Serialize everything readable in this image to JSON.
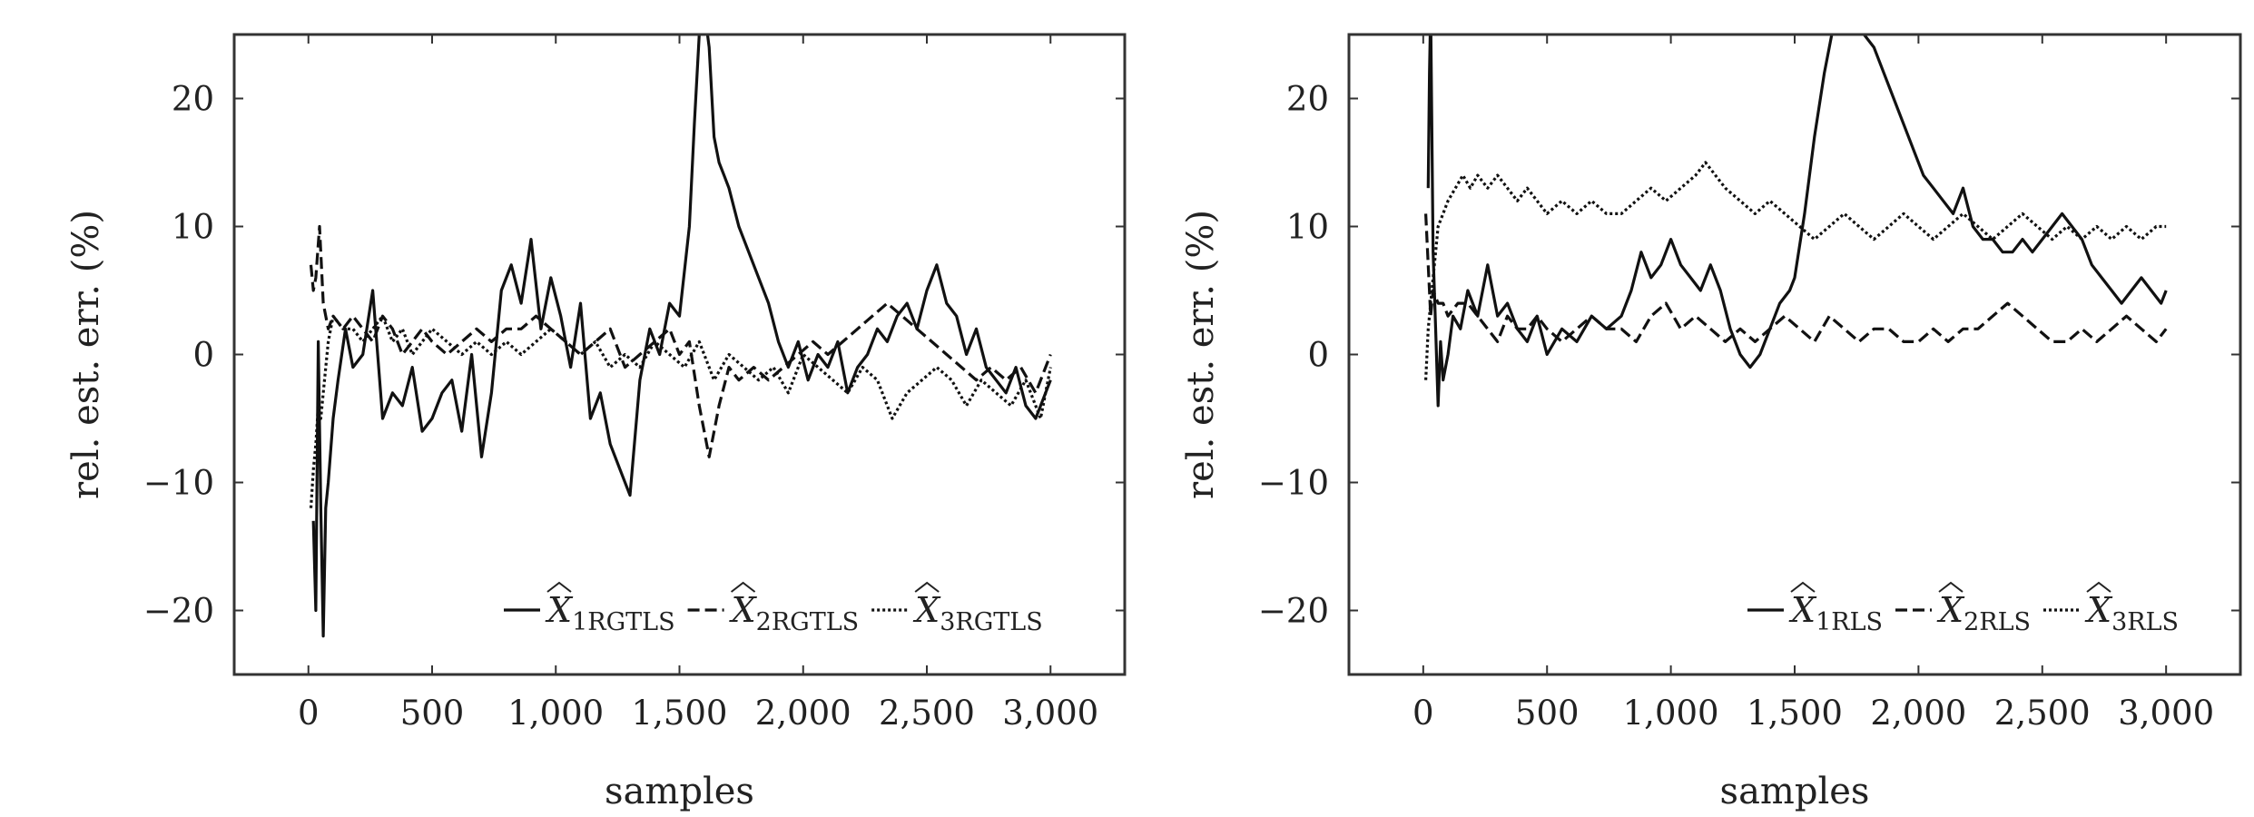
{
  "chart_data": [
    {
      "type": "line",
      "xlabel": "samples",
      "ylabel": "rel. est. err. (%)",
      "xlim": [
        -300,
        3300
      ],
      "ylim": [
        -25,
        25
      ],
      "x_ticks": [
        0,
        500,
        1000,
        1500,
        2000,
        2500,
        3000
      ],
      "x_tick_labels": [
        "0",
        "500",
        "1,000",
        "1,500",
        "2,000",
        "2,500",
        "3,000"
      ],
      "y_ticks": [
        -20,
        -10,
        0,
        10,
        20
      ],
      "y_tick_labels": [
        "−20",
        "−10",
        "0",
        "10",
        "20"
      ],
      "grid": false,
      "legend_position": "bottom-right",
      "series": [
        {
          "name": "X̂1RGTLS",
          "legend": {
            "symbol": "X",
            "subscript": "1RGTLS"
          },
          "style": "solid",
          "x": [
            20,
            30,
            40,
            50,
            60,
            70,
            80,
            100,
            120,
            150,
            180,
            220,
            260,
            300,
            340,
            380,
            420,
            460,
            500,
            540,
            580,
            620,
            660,
            700,
            740,
            780,
            820,
            860,
            900,
            940,
            980,
            1020,
            1060,
            1100,
            1140,
            1180,
            1220,
            1260,
            1300,
            1340,
            1380,
            1420,
            1460,
            1500,
            1540,
            1560,
            1580,
            1600,
            1620,
            1640,
            1660,
            1680,
            1700,
            1740,
            1780,
            1820,
            1860,
            1900,
            1940,
            1980,
            2020,
            2060,
            2100,
            2140,
            2180,
            2220,
            2260,
            2300,
            2340,
            2380,
            2420,
            2460,
            2500,
            2540,
            2580,
            2620,
            2660,
            2700,
            2740,
            2780,
            2820,
            2860,
            2900,
            2940,
            2980,
            3000
          ],
          "y": [
            -13,
            -20,
            1,
            -12,
            -22,
            -12,
            -10,
            -5,
            -2,
            2,
            -1,
            0,
            5,
            -5,
            -3,
            -4,
            -1,
            -6,
            -5,
            -3,
            -2,
            -6,
            0,
            -8,
            -3,
            5,
            7,
            4,
            9,
            2,
            6,
            3,
            -1,
            4,
            -5,
            -3,
            -7,
            -9,
            -11,
            -2,
            2,
            0,
            4,
            3,
            10,
            18,
            25,
            27,
            24,
            17,
            15,
            14,
            13,
            10,
            8,
            6,
            4,
            1,
            -1,
            1,
            -2,
            0,
            -1,
            1,
            -3,
            -1,
            0,
            2,
            1,
            3,
            4,
            2,
            5,
            7,
            4,
            3,
            0,
            2,
            -1,
            -2,
            -3,
            -1,
            -4,
            -5,
            -3,
            -2
          ]
        },
        {
          "name": "X̂2RGTLS",
          "legend": {
            "symbol": "X",
            "subscript": "2RGTLS"
          },
          "style": "dashed",
          "x": [
            10,
            20,
            30,
            45,
            60,
            80,
            100,
            140,
            180,
            220,
            260,
            300,
            340,
            380,
            420,
            460,
            500,
            560,
            620,
            680,
            740,
            800,
            860,
            920,
            980,
            1040,
            1100,
            1160,
            1220,
            1280,
            1340,
            1400,
            1460,
            1500,
            1540,
            1580,
            1620,
            1660,
            1700,
            1740,
            1800,
            1860,
            1920,
            1980,
            2040,
            2100,
            2160,
            2220,
            2280,
            2340,
            2400,
            2460,
            2520,
            2580,
            2640,
            2700,
            2760,
            2820,
            2880,
            2940,
            3000
          ],
          "y": [
            7,
            5,
            6,
            10,
            4,
            2,
            3,
            2,
            3,
            2,
            1,
            3,
            2,
            0,
            1,
            2,
            1,
            0,
            1,
            2,
            1,
            2,
            2,
            3,
            2,
            1,
            0,
            1,
            2,
            -1,
            0,
            1,
            2,
            0,
            1,
            -4,
            -8,
            -4,
            -1,
            -2,
            -1,
            -2,
            -1,
            0,
            1,
            0,
            1,
            2,
            3,
            4,
            3,
            2,
            1,
            0,
            -1,
            -2,
            -1,
            -2,
            -1,
            -3,
            0
          ]
        },
        {
          "name": "X̂3RGTLS",
          "legend": {
            "symbol": "X",
            "subscript": "3RGTLS"
          },
          "style": "dotted",
          "x": [
            10,
            20,
            30,
            40,
            50,
            60,
            80,
            100,
            140,
            180,
            220,
            260,
            300,
            340,
            380,
            420,
            460,
            500,
            560,
            620,
            680,
            740,
            800,
            860,
            920,
            980,
            1040,
            1100,
            1160,
            1220,
            1280,
            1340,
            1400,
            1460,
            1520,
            1580,
            1640,
            1700,
            1760,
            1820,
            1880,
            1940,
            2000,
            2060,
            2120,
            2180,
            2240,
            2300,
            2360,
            2420,
            2480,
            2540,
            2600,
            2660,
            2720,
            2780,
            2840,
            2900,
            2960,
            3000
          ],
          "y": [
            -12,
            -9,
            -7,
            -4,
            -5,
            -3,
            1,
            3,
            2,
            2,
            1,
            2,
            3,
            1,
            2,
            0,
            1,
            2,
            1,
            0,
            1,
            0,
            1,
            0,
            1,
            2,
            1,
            0,
            1,
            -1,
            0,
            -1,
            1,
            0,
            -1,
            1,
            -2,
            0,
            -1,
            -2,
            -1,
            -3,
            0,
            -1,
            -2,
            -3,
            -1,
            -2,
            -5,
            -3,
            -2,
            -1,
            -2,
            -4,
            -2,
            -3,
            -4,
            -2,
            -5,
            -1
          ]
        }
      ]
    },
    {
      "type": "line",
      "xlabel": "samples",
      "ylabel": "rel. est. err. (%)",
      "xlim": [
        -300,
        3300
      ],
      "ylim": [
        -25,
        25
      ],
      "x_ticks": [
        0,
        500,
        1000,
        1500,
        2000,
        2500,
        3000
      ],
      "x_tick_labels": [
        "0",
        "500",
        "1,000",
        "1,500",
        "2,000",
        "2,500",
        "3,000"
      ],
      "y_ticks": [
        -20,
        -10,
        0,
        10,
        20
      ],
      "y_tick_labels": [
        "−20",
        "−10",
        "0",
        "10",
        "20"
      ],
      "grid": false,
      "legend_position": "bottom-right",
      "series": [
        {
          "name": "X̂1RLS",
          "legend": {
            "symbol": "X",
            "subscript": "1RLS"
          },
          "style": "solid",
          "x": [
            20,
            25,
            30,
            40,
            50,
            60,
            70,
            80,
            100,
            120,
            150,
            180,
            220,
            260,
            300,
            340,
            380,
            420,
            460,
            500,
            560,
            620,
            680,
            740,
            800,
            840,
            880,
            920,
            960,
            1000,
            1040,
            1080,
            1120,
            1160,
            1200,
            1240,
            1280,
            1320,
            1360,
            1400,
            1440,
            1480,
            1500,
            1540,
            1580,
            1620,
            1660,
            1700,
            1740,
            1780,
            1820,
            1860,
            1900,
            1940,
            1980,
            2020,
            2060,
            2100,
            2140,
            2180,
            2220,
            2260,
            2300,
            2340,
            2380,
            2420,
            2460,
            2500,
            2540,
            2580,
            2620,
            2660,
            2700,
            2740,
            2780,
            2820,
            2860,
            2900,
            2940,
            2980,
            3000
          ],
          "y": [
            13,
            22,
            27,
            8,
            2,
            -4,
            1,
            -2,
            0,
            3,
            2,
            5,
            3,
            7,
            3,
            4,
            2,
            1,
            3,
            0,
            2,
            1,
            3,
            2,
            3,
            5,
            8,
            6,
            7,
            9,
            7,
            6,
            5,
            7,
            5,
            2,
            0,
            -1,
            0,
            2,
            4,
            5,
            6,
            11,
            17,
            22,
            26,
            28,
            27,
            25,
            24,
            22,
            20,
            18,
            16,
            14,
            13,
            12,
            11,
            13,
            10,
            9,
            9,
            8,
            8,
            9,
            8,
            9,
            10,
            11,
            10,
            9,
            7,
            6,
            5,
            4,
            5,
            6,
            5,
            4,
            5
          ]
        },
        {
          "name": "X̂2RLS",
          "legend": {
            "symbol": "X",
            "subscript": "2RLS"
          },
          "style": "dashed",
          "x": [
            10,
            20,
            30,
            40,
            60,
            80,
            100,
            140,
            180,
            220,
            260,
            300,
            340,
            380,
            420,
            460,
            500,
            560,
            620,
            680,
            740,
            800,
            860,
            920,
            980,
            1040,
            1100,
            1160,
            1220,
            1280,
            1340,
            1400,
            1460,
            1520,
            1580,
            1640,
            1700,
            1760,
            1820,
            1880,
            1940,
            2000,
            2060,
            2120,
            2180,
            2240,
            2300,
            2360,
            2420,
            2480,
            2540,
            2600,
            2660,
            2720,
            2780,
            2840,
            2900,
            2960,
            3000
          ],
          "y": [
            11,
            7,
            3,
            5,
            4,
            4,
            3,
            4,
            4,
            3,
            2,
            1,
            3,
            2,
            2,
            3,
            2,
            1,
            2,
            3,
            2,
            2,
            1,
            3,
            4,
            2,
            3,
            2,
            1,
            2,
            1,
            2,
            3,
            2,
            1,
            3,
            2,
            1,
            2,
            2,
            1,
            1,
            2,
            1,
            2,
            2,
            3,
            4,
            3,
            2,
            1,
            1,
            2,
            1,
            2,
            3,
            2,
            1,
            2
          ]
        },
        {
          "name": "X̂3RLS",
          "legend": {
            "symbol": "X",
            "subscript": "3RLS"
          },
          "style": "dotted",
          "x": [
            10,
            20,
            30,
            40,
            50,
            60,
            80,
            100,
            130,
            160,
            190,
            220,
            260,
            300,
            340,
            380,
            420,
            460,
            500,
            560,
            620,
            680,
            740,
            800,
            860,
            920,
            980,
            1040,
            1100,
            1140,
            1180,
            1220,
            1280,
            1340,
            1400,
            1460,
            1520,
            1580,
            1640,
            1700,
            1760,
            1820,
            1880,
            1940,
            2000,
            2060,
            2120,
            2180,
            2240,
            2300,
            2360,
            2420,
            2480,
            2540,
            2600,
            2660,
            2720,
            2780,
            2840,
            2900,
            2960,
            3000
          ],
          "y": [
            -2,
            2,
            4,
            6,
            8,
            10,
            11,
            12,
            13,
            14,
            13,
            14,
            13,
            14,
            13,
            12,
            13,
            12,
            11,
            12,
            11,
            12,
            11,
            11,
            12,
            13,
            12,
            13,
            14,
            15,
            14,
            13,
            12,
            11,
            12,
            11,
            10,
            9,
            10,
            11,
            10,
            9,
            10,
            11,
            10,
            9,
            10,
            11,
            10,
            9,
            10,
            11,
            10,
            9,
            10,
            9,
            10,
            9,
            10,
            9,
            10,
            10
          ]
        }
      ]
    }
  ]
}
